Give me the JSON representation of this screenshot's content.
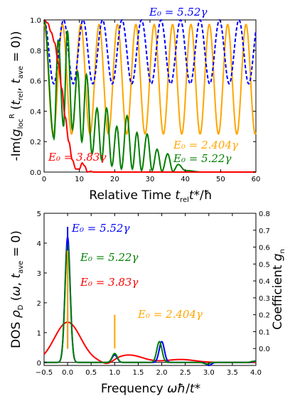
{
  "chart_data": [
    {
      "type": "line",
      "ylabel": "-Im(g_loc^R(t_rel, t_ave = 0))",
      "xlabel": "Relative Time t_rel t*/ħ",
      "xlim": [
        0,
        60
      ],
      "ylim": [
        0,
        1.0
      ],
      "xticks": [
        "0",
        "10",
        "20",
        "30",
        "40",
        "50",
        "60"
      ],
      "yticks": [
        "0.0",
        "0.2",
        "0.4",
        "0.6",
        "0.8",
        "1.0"
      ],
      "series": [
        {
          "name": "E0 = 5.52γ",
          "color": "#0000ff",
          "dashed": true,
          "min": 0.58,
          "max": 1.0,
          "period": 5.52
        },
        {
          "name": "E0 = 2.404γ",
          "color": "#ffa500",
          "min": 0.25,
          "max": 0.97,
          "period": 5.2
        },
        {
          "name": "E0 = 5.22γ",
          "color": "#008000",
          "x": [
            0,
            2.8,
            4,
            5.5,
            6.6,
            8,
            9.5,
            10.7,
            12,
            13.6,
            15,
            16.3,
            17.7,
            19.2,
            20.6,
            21.9,
            23.5,
            25,
            26.3,
            27.6,
            29.2,
            30.6,
            32,
            33.4,
            35,
            36.5,
            38,
            40,
            45,
            50,
            60
          ],
          "y": [
            1.0,
            0.22,
            0.87,
            0.3,
            0.93,
            0.28,
            0.66,
            0.2,
            0.64,
            0.12,
            0.42,
            0.08,
            0.42,
            0.04,
            0.3,
            0.02,
            0.37,
            0.02,
            0.26,
            0.01,
            0.25,
            0.01,
            0.15,
            0.005,
            0.12,
            0.005,
            0.05,
            0.01,
            0.0,
            0.0,
            0.0
          ]
        },
        {
          "name": "E0 = 3.83γ",
          "color": "#ff0000",
          "x": [
            0,
            1,
            2,
            3,
            4,
            5,
            6,
            7,
            8,
            9,
            10,
            10.8,
            11.5,
            12.3,
            13.2,
            14,
            15,
            20,
            30,
            60
          ],
          "y": [
            1.0,
            0.98,
            0.92,
            0.85,
            0.72,
            0.55,
            0.36,
            0.2,
            0.08,
            0.02,
            0.02,
            0.06,
            0.04,
            0.0,
            0.005,
            0.0,
            0.0,
            0.0,
            0.0,
            0.0
          ]
        }
      ],
      "annotations": [
        {
          "text": "E₀ = 5.52γ",
          "color": "#0000ff"
        },
        {
          "text": "E₀ = 2.404γ",
          "color": "#ffa500"
        },
        {
          "text": "E₀ = 5.22γ",
          "color": "#008000"
        },
        {
          "text": "E₀ = 3.83γ",
          "color": "#ff0000"
        }
      ]
    },
    {
      "type": "line",
      "ylabel": "DOS ρ_D(ω, t_ave = 0)",
      "y2label": "Coefficient g_n",
      "xlabel": "Frequency ωħ/t*",
      "xlim": [
        -0.5,
        4.0
      ],
      "ylim": [
        -0.1,
        5.0
      ],
      "y2lim": [
        -0.1,
        0.8
      ],
      "xticks": [
        "−0.5",
        "0.0",
        "0.5",
        "1.0",
        "1.5",
        "2.0",
        "2.5",
        "3.0",
        "3.5",
        "4.0"
      ],
      "yticks": [
        "0",
        "1",
        "2",
        "3",
        "4",
        "5"
      ],
      "y2ticks": [
        "0.0",
        "0.1",
        "0.2",
        "0.3",
        "0.4",
        "0.5",
        "0.6",
        "0.7",
        "0.8"
      ],
      "series": [
        {
          "name": "E0 = 5.52γ",
          "color": "#0000ff",
          "peaks": [
            [
              0,
              4.2
            ],
            [
              1.0,
              0.25
            ],
            [
              2.0,
              0.7
            ],
            [
              3.0,
              -0.1
            ],
            [
              4.0,
              0.05
            ]
          ]
        },
        {
          "name": "E0 = 5.22γ",
          "color": "#008000",
          "peaks": [
            [
              0,
              4.0
            ],
            [
              1.0,
              0.3
            ],
            [
              1.95,
              0.7
            ],
            [
              2.95,
              -0.05
            ],
            [
              3.95,
              0.04
            ]
          ]
        },
        {
          "name": "E0 = 3.83γ",
          "color": "#ff0000",
          "broad": [
            [
              0,
              1.35
            ],
            [
              1.3,
              0.25
            ],
            [
              2.4,
              0.1
            ]
          ]
        },
        {
          "name": "E0 = 2.404γ",
          "color": "#ffa500",
          "coeff": [
            [
              0,
              0.58
            ],
            [
              1.0,
              0.2
            ]
          ]
        }
      ],
      "coefficient_lines": [
        {
          "x": 0,
          "g": 0.72,
          "color": "#0000ff"
        },
        {
          "x": 0,
          "g": 0.58,
          "color": "#ffa500"
        },
        {
          "x": 1.0,
          "g": 0.2,
          "color": "#ffa500"
        }
      ],
      "annotations": [
        {
          "text": "E₀ = 5.52γ",
          "color": "#0000ff"
        },
        {
          "text": "E₀ = 5.22γ",
          "color": "#008000"
        },
        {
          "text": "E₀ = 3.83γ",
          "color": "#ff0000"
        },
        {
          "text": "E₀ = 2.404γ",
          "color": "#ffa500"
        }
      ]
    }
  ]
}
